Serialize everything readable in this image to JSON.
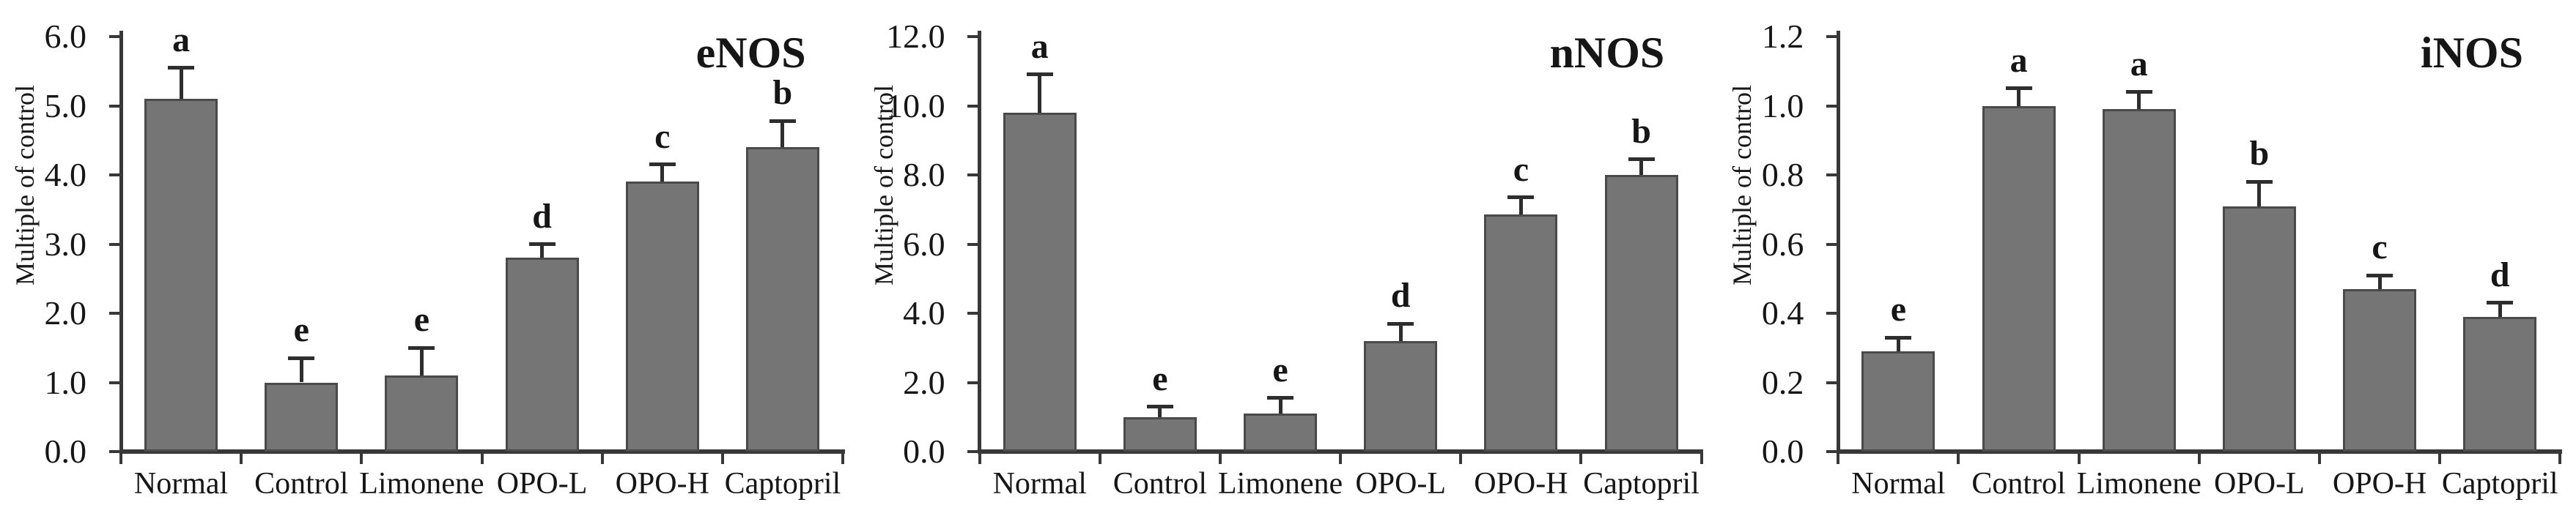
{
  "figure": {
    "background": "#ffffff",
    "bar_fill": "#757575",
    "bar_border": "#4a4a4a",
    "axis_color": "#383838",
    "error_color": "#2e2e2e",
    "text_color": "#161616"
  },
  "chart_data": [
    {
      "type": "bar",
      "title": "eNOS",
      "ylabel": "Multiple of control",
      "xlabel": "",
      "ylim": [
        0,
        6.0
      ],
      "ytick_interval": 1.0,
      "ytick_labels": [
        "0.0",
        "1.0",
        "2.0",
        "3.0",
        "4.0",
        "5.0",
        "6.0"
      ],
      "grid": false,
      "legend": "none",
      "categories": [
        "Normal",
        "Control",
        "Limonene",
        "OPO-L",
        "OPO-H",
        "Captopril"
      ],
      "values": [
        5.1,
        1.0,
        1.1,
        2.8,
        3.9,
        4.4
      ],
      "errors": [
        0.45,
        0.35,
        0.4,
        0.2,
        0.25,
        0.38
      ],
      "sig_letters": [
        "a",
        "e",
        "e",
        "d",
        "c",
        "b"
      ]
    },
    {
      "type": "bar",
      "title": "nNOS",
      "ylabel": "Multiple of control",
      "xlabel": "",
      "ylim": [
        0,
        12.0
      ],
      "ytick_interval": 2.0,
      "ytick_labels": [
        "0.0",
        "2.0",
        "4.0",
        "6.0",
        "8.0",
        "10.0",
        "12.0"
      ],
      "grid": false,
      "legend": "none",
      "categories": [
        "Normal",
        "Control",
        "Limonene",
        "OPO-L",
        "OPO-H",
        "Captopril"
      ],
      "values": [
        9.8,
        1.0,
        1.1,
        3.2,
        6.85,
        8.0
      ],
      "errors": [
        1.1,
        0.3,
        0.45,
        0.5,
        0.5,
        0.45
      ],
      "sig_letters": [
        "a",
        "e",
        "e",
        "d",
        "c",
        "b"
      ]
    },
    {
      "type": "bar",
      "title": "iNOS",
      "ylabel": "Multiple of control",
      "xlabel": "",
      "ylim": [
        0,
        1.2
      ],
      "ytick_interval": 0.2,
      "ytick_labels": [
        "0.0",
        "0.2",
        "0.4",
        "0.6",
        "0.8",
        "1.0",
        "1.2"
      ],
      "grid": false,
      "legend": "none",
      "categories": [
        "Normal",
        "Control",
        "Limonene",
        "OPO-L",
        "OPO-H",
        "Captopril"
      ],
      "values": [
        0.29,
        1.0,
        0.99,
        0.71,
        0.47,
        0.39
      ],
      "errors": [
        0.04,
        0.05,
        0.05,
        0.07,
        0.04,
        0.04
      ],
      "sig_letters": [
        "e",
        "a",
        "a",
        "b",
        "c",
        "d"
      ]
    }
  ]
}
